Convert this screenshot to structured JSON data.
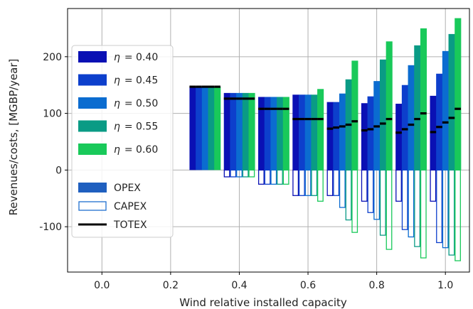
{
  "chart_data": {
    "type": "bar",
    "xlabel": "Wind relative installed capacity",
    "ylabel": "Revenues/costs, [MGBP/year]",
    "xlim": [
      -0.1,
      1.07
    ],
    "ylim": [
      -180,
      285
    ],
    "x_ticks": [
      "0.0",
      "0.2",
      "0.4",
      "0.6",
      "0.8",
      "1.0"
    ],
    "y_ticks": [
      "-100",
      "0",
      "100",
      "200"
    ],
    "grid": true,
    "legend_position": "upper-left",
    "x_groups": [
      0.3,
      0.4,
      0.5,
      0.6,
      0.7,
      0.8,
      0.9,
      1.0
    ],
    "series": [
      {
        "name": "η = 0.40",
        "label_prefix": "η",
        "label_value": "= 0.40",
        "color": "#0a10b4",
        "opex": [
          147,
          136,
          129,
          133,
          120,
          118,
          117,
          131
        ],
        "capex": [
          0,
          -12,
          -25,
          -45,
          -45,
          -55,
          -55,
          -55
        ],
        "totex": [
          147,
          126,
          108,
          90,
          73,
          70,
          66,
          67
        ]
      },
      {
        "name": "η = 0.45",
        "label_prefix": "η",
        "label_value": "= 0.45",
        "color": "#0d3fcc",
        "opex": [
          147,
          136,
          129,
          133,
          120,
          130,
          150,
          170
        ],
        "capex": [
          0,
          -12,
          -25,
          -45,
          -45,
          -75,
          -105,
          -128
        ],
        "totex": [
          147,
          126,
          108,
          90,
          75,
          72,
          72,
          76
        ]
      },
      {
        "name": "η = 0.50",
        "label_prefix": "η",
        "label_value": "= 0.50",
        "color": "#0b6cd0",
        "opex": [
          147,
          136,
          129,
          133,
          135,
          157,
          185,
          210
        ],
        "capex": [
          0,
          -12,
          -25,
          -45,
          -66,
          -87,
          -118,
          -137
        ],
        "totex": [
          147,
          126,
          108,
          90,
          77,
          77,
          80,
          84
        ]
      },
      {
        "name": "η = 0.55",
        "label_prefix": "η",
        "label_value": "= 0.55",
        "color": "#0a9b85",
        "opex": [
          147,
          136,
          129,
          133,
          160,
          195,
          220,
          240
        ],
        "capex": [
          0,
          -12,
          -25,
          -45,
          -88,
          -115,
          -135,
          -150
        ],
        "totex": [
          147,
          126,
          108,
          90,
          80,
          82,
          90,
          92
        ]
      },
      {
        "name": "η = 0.60",
        "label_prefix": "η",
        "label_value": "= 0.60",
        "color": "#19c95a",
        "opex": [
          147,
          136,
          129,
          143,
          193,
          227,
          250,
          268
        ],
        "capex": [
          0,
          -12,
          -25,
          -55,
          -110,
          -140,
          -155,
          -160
        ],
        "totex": [
          147,
          126,
          108,
          90,
          86,
          90,
          100,
          108
        ]
      }
    ],
    "legend_extra": [
      {
        "label": "OPEX",
        "style": "filled",
        "color": "#1f5fbf"
      },
      {
        "label": "CAPEX",
        "style": "outline",
        "color": "#1f6fd0"
      },
      {
        "label": "TOTEX",
        "style": "line",
        "color": "#000000"
      }
    ]
  }
}
